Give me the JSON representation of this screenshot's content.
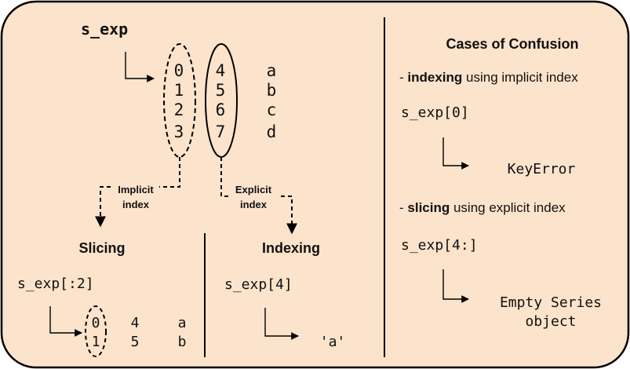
{
  "colors": {
    "background": "#FCE3CC",
    "border": "#000000",
    "text": "#111111"
  },
  "left": {
    "series_name": "s_exp",
    "implicit_index": [
      "0",
      "1",
      "2",
      "3"
    ],
    "explicit_index": [
      "4",
      "5",
      "6",
      "7"
    ],
    "values": [
      "a",
      "b",
      "c",
      "d"
    ],
    "implicit_label_line1": "Implicit",
    "implicit_label_line2": "index",
    "explicit_label_line1": "Explicit",
    "explicit_label_line2": "index"
  },
  "slicing": {
    "title": "Slicing",
    "code": "s_exp[:2]",
    "result_index": [
      "0",
      "1"
    ],
    "result_explicit": [
      "4",
      "5"
    ],
    "result_values": [
      "a",
      "b"
    ]
  },
  "indexing": {
    "title": "Indexing",
    "code": "s_exp[4]",
    "result": "'a'"
  },
  "confusion": {
    "title": "Cases of Confusion",
    "case1_prefix": "- ",
    "case1_bold": "indexing",
    "case1_rest": " using implicit index",
    "case1_code": "s_exp[0]",
    "case1_result": "KeyError",
    "case2_prefix": "- ",
    "case2_bold": "slicing",
    "case2_rest": " using explicit index",
    "case2_code": "s_exp[4:]",
    "case2_result_line1": "Empty Series",
    "case2_result_line2": "object"
  }
}
